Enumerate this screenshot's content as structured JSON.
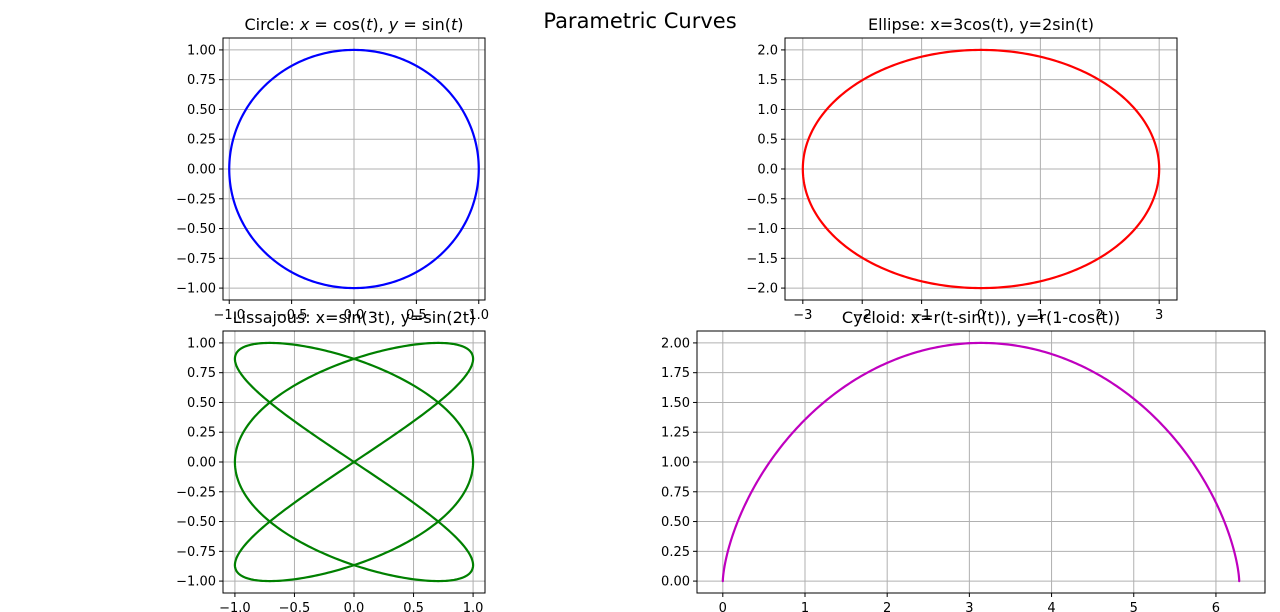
{
  "figure": {
    "title": "Parametric Curves"
  },
  "chart_data": [
    {
      "type": "line",
      "title": "Circle: x = cos(t), y = sin(t)",
      "title_parts": [
        "Circle: ",
        "x",
        " = cos(",
        "t",
        "), ",
        "y",
        " = sin(",
        "t",
        ")"
      ],
      "xlim": [
        -1.05,
        1.05
      ],
      "ylim": [
        -1.1,
        1.1
      ],
      "xticks": [
        -1.0,
        -0.5,
        0.0,
        0.5,
        1.0
      ],
      "xtick_labels": [
        "−1.0",
        "−0.5",
        "0.0",
        "0.5",
        "1.0"
      ],
      "yticks": [
        -1.0,
        -0.75,
        -0.5,
        -0.25,
        0.0,
        0.25,
        0.5,
        0.75,
        1.0
      ],
      "ytick_labels": [
        "−1.00",
        "−0.75",
        "−0.50",
        "−0.25",
        "0.00",
        "0.25",
        "0.50",
        "0.75",
        "1.00"
      ],
      "grid": true,
      "series": [
        {
          "equation": "x=cos(t), y=sin(t)",
          "t_range": [
            0,
            6.283185
          ],
          "points": 400,
          "color": "#0000ff"
        }
      ]
    },
    {
      "type": "line",
      "title": "Ellipse: x=3cos(t), y=2sin(t)",
      "xlim": [
        -3.3,
        3.3
      ],
      "ylim": [
        -2.2,
        2.2
      ],
      "xticks": [
        -3,
        -2,
        -1,
        0,
        1,
        2,
        3
      ],
      "xtick_labels": [
        "−3",
        "−2",
        "−1",
        "0",
        "1",
        "2",
        "3"
      ],
      "yticks": [
        -2.0,
        -1.5,
        -1.0,
        -0.5,
        0.0,
        0.5,
        1.0,
        1.5,
        2.0
      ],
      "ytick_labels": [
        "−2.0",
        "−1.5",
        "−1.0",
        "−0.5",
        "0.0",
        "0.5",
        "1.0",
        "1.5",
        "2.0"
      ],
      "grid": true,
      "series": [
        {
          "equation": "x=3cos(t), y=2sin(t)",
          "t_range": [
            0,
            6.283185
          ],
          "points": 400,
          "color": "#ff0000"
        }
      ]
    },
    {
      "type": "line",
      "title": "Lissajous: x=sin(3t), y=sin(2t)",
      "xlim": [
        -1.1,
        1.1
      ],
      "ylim": [
        -1.1,
        1.1
      ],
      "xticks": [
        -1.0,
        -0.5,
        0.0,
        0.5,
        1.0
      ],
      "xtick_labels": [
        "−1.0",
        "−0.5",
        "0.0",
        "0.5",
        "1.0"
      ],
      "yticks": [
        -1.0,
        -0.75,
        -0.5,
        -0.25,
        0.0,
        0.25,
        0.5,
        0.75,
        1.0
      ],
      "ytick_labels": [
        "−1.00",
        "−0.75",
        "−0.50",
        "−0.25",
        "0.00",
        "0.25",
        "0.50",
        "0.75",
        "1.00"
      ],
      "grid": true,
      "series": [
        {
          "equation": "x=sin(3t), y=sin(2t)",
          "t_range": [
            0,
            6.283185
          ],
          "points": 800,
          "color": "#008000"
        }
      ]
    },
    {
      "type": "line",
      "title": "Cycloid: x=r(t-sin(t)), y=r(1-cos(t))",
      "xlim": [
        -0.314,
        6.597
      ],
      "ylim": [
        -0.1,
        2.1
      ],
      "xticks": [
        0,
        1,
        2,
        3,
        4,
        5,
        6
      ],
      "xtick_labels": [
        "0",
        "1",
        "2",
        "3",
        "4",
        "5",
        "6"
      ],
      "yticks": [
        0.0,
        0.25,
        0.5,
        0.75,
        1.0,
        1.25,
        1.5,
        1.75,
        2.0
      ],
      "ytick_labels": [
        "0.00",
        "0.25",
        "0.50",
        "0.75",
        "1.00",
        "1.25",
        "1.50",
        "1.75",
        "2.00"
      ],
      "grid": true,
      "series": [
        {
          "equation": "x=r(t-sin(t)), y=r(1-cos(t))",
          "r": 1,
          "t_range": [
            0,
            6.283185
          ],
          "points": 400,
          "color": "#bf00bf"
        }
      ]
    }
  ]
}
